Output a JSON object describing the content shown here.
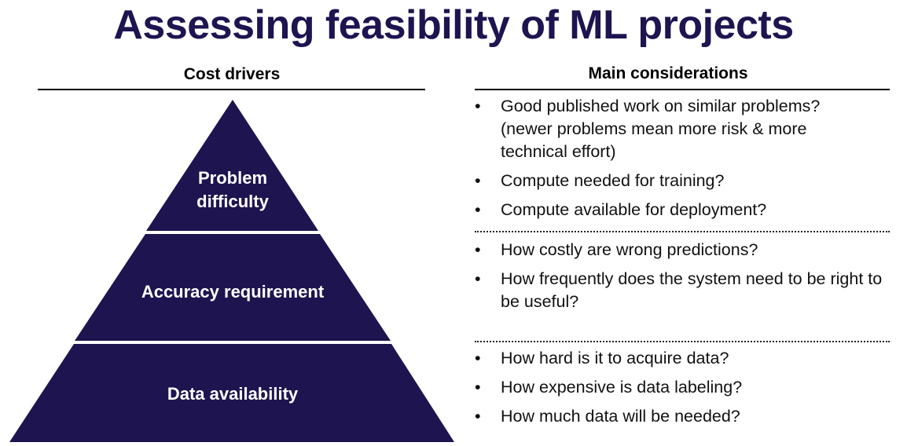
{
  "title": "Assessing feasibility of ML projects",
  "colors": {
    "pyramid": "#1e1450",
    "title": "#1e1450"
  },
  "left": {
    "header": "Cost drivers",
    "tiers": [
      {
        "line1": "Problem",
        "line2": "difficulty"
      },
      {
        "label": "Accuracy requirement"
      },
      {
        "label": "Data availability"
      }
    ]
  },
  "right": {
    "header": "Main considerations",
    "groups": [
      {
        "items": [
          "Good published work on similar problems? (newer problems mean more risk & more technical effort)",
          "Compute needed for training?",
          "Compute available for deployment?"
        ]
      },
      {
        "items": [
          "How costly are wrong predictions?",
          "How frequently does the system need to be right to be useful?"
        ]
      },
      {
        "items": [
          "How hard is it to acquire data?",
          "How expensive is data labeling?",
          "How much data will be needed?"
        ]
      }
    ]
  }
}
